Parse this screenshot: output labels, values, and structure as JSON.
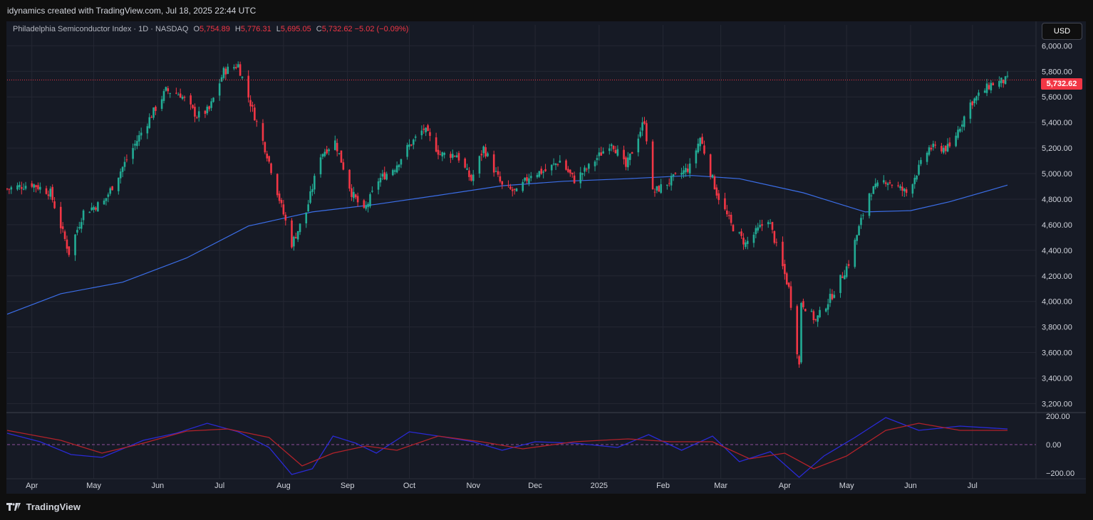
{
  "header": {
    "caption": "idynamics created with TradingView.com, Jul 18, 2025 22:44 UTC"
  },
  "legend": {
    "symbol": "Philadelphia Semiconductor Index · 1D · NASDAQ",
    "o_label": "O",
    "o_value": "5,754.89",
    "h_label": "H",
    "h_value": "5,776.31",
    "l_label": "L",
    "l_value": "5,695.05",
    "c_label": "C",
    "c_value": "5,732.62",
    "change": "−5.02 (−0.09%)"
  },
  "currency_button": "USD",
  "last_price_badge": "5,732.62",
  "footer": {
    "brand": "TradingView"
  },
  "colors": {
    "up": "#22ab94",
    "down": "#f23645",
    "ma": "#3b6ee8",
    "osc_fast": "#2a2ad6",
    "osc_slow": "#b2222a",
    "background": "#161a25",
    "grid": "#242733"
  },
  "chart_data": {
    "type": "candlestick",
    "x_axis_labels": [
      "Apr",
      "May",
      "Jun",
      "Jul",
      "Aug",
      "Sep",
      "Oct",
      "Nov",
      "Dec",
      "2025",
      "Feb",
      "Mar",
      "Apr",
      "May",
      "Jun",
      "Jul"
    ],
    "y_axis_ticks": [
      "6,000.00",
      "5,800.00",
      "5,600.00",
      "5,400.00",
      "5,200.00",
      "5,000.00",
      "4,800.00",
      "4,600.00",
      "4,400.00",
      "4,200.00",
      "4,000.00",
      "3,800.00",
      "3,600.00",
      "3,400.00",
      "3,200.00"
    ],
    "ylim": [
      3130,
      6080
    ],
    "last_price": 5732.62,
    "price_path": [
      [
        "2024-03-20",
        4880
      ],
      [
        "2024-04-01",
        4920
      ],
      [
        "2024-04-10",
        4850
      ],
      [
        "2024-04-19",
        4380
      ],
      [
        "2024-04-26",
        4700
      ],
      [
        "2024-05-06",
        4780
      ],
      [
        "2024-05-15",
        5050
      ],
      [
        "2024-05-24",
        5320
      ],
      [
        "2024-06-05",
        5650
      ],
      [
        "2024-06-12",
        5620
      ],
      [
        "2024-06-20",
        5450
      ],
      [
        "2024-06-26",
        5500
      ],
      [
        "2024-07-03",
        5800
      ],
      [
        "2024-07-10",
        5850
      ],
      [
        "2024-07-17",
        5500
      ],
      [
        "2024-07-24",
        5150
      ],
      [
        "2024-08-05",
        4450
      ],
      [
        "2024-08-12",
        4700
      ],
      [
        "2024-08-19",
        5150
      ],
      [
        "2024-08-26",
        5250
      ],
      [
        "2024-09-03",
        4850
      ],
      [
        "2024-09-09",
        4700
      ],
      [
        "2024-09-16",
        4950
      ],
      [
        "2024-09-24",
        5050
      ],
      [
        "2024-09-30",
        5200
      ],
      [
        "2024-10-08",
        5350
      ],
      [
        "2024-10-16",
        5150
      ],
      [
        "2024-10-24",
        5150
      ],
      [
        "2024-10-31",
        4950
      ],
      [
        "2024-11-06",
        5200
      ],
      [
        "2024-11-15",
        4900
      ],
      [
        "2024-11-22",
        4850
      ],
      [
        "2024-11-29",
        5000
      ],
      [
        "2024-12-06",
        5020
      ],
      [
        "2024-12-13",
        5100
      ],
      [
        "2024-12-20",
        4950
      ],
      [
        "2024-12-27",
        5050
      ],
      [
        "2025-01-07",
        5250
      ],
      [
        "2025-01-14",
        5050
      ],
      [
        "2025-01-23",
        5420
      ],
      [
        "2025-01-27",
        4850
      ],
      [
        "2025-02-05",
        4950
      ],
      [
        "2025-02-14",
        5050
      ],
      [
        "2025-02-19",
        5280
      ],
      [
        "2025-02-27",
        4850
      ],
      [
        "2025-03-06",
        4600
      ],
      [
        "2025-03-13",
        4450
      ],
      [
        "2025-03-24",
        4650
      ],
      [
        "2025-04-03",
        4100
      ],
      [
        "2025-04-08",
        3500
      ],
      [
        "2025-04-09",
        4000
      ],
      [
        "2025-04-16",
        3850
      ],
      [
        "2025-04-24",
        4050
      ],
      [
        "2025-05-02",
        4300
      ],
      [
        "2025-05-12",
        4850
      ],
      [
        "2025-05-20",
        4950
      ],
      [
        "2025-05-30",
        4850
      ],
      [
        "2025-06-10",
        5200
      ],
      [
        "2025-06-20",
        5200
      ],
      [
        "2025-06-30",
        5550
      ],
      [
        "2025-07-10",
        5700
      ],
      [
        "2025-07-18",
        5732.62
      ]
    ],
    "moving_average": [
      [
        "2024-03-20",
        3900
      ],
      [
        "2024-04-15",
        4060
      ],
      [
        "2024-05-15",
        4150
      ],
      [
        "2024-06-15",
        4340
      ],
      [
        "2024-07-15",
        4590
      ],
      [
        "2024-08-15",
        4700
      ],
      [
        "2024-09-15",
        4760
      ],
      [
        "2024-10-15",
        4830
      ],
      [
        "2024-11-15",
        4905
      ],
      [
        "2024-12-15",
        4940
      ],
      [
        "2025-01-15",
        4960
      ],
      [
        "2025-02-15",
        4985
      ],
      [
        "2025-03-10",
        4960
      ],
      [
        "2025-04-10",
        4850
      ],
      [
        "2025-05-10",
        4700
      ],
      [
        "2025-06-01",
        4710
      ],
      [
        "2025-06-20",
        4780
      ],
      [
        "2025-07-18",
        4910
      ]
    ],
    "oscillator": {
      "ticks": [
        "200.00",
        "0.00",
        "−200.00"
      ],
      "ylim": [
        -240,
        220
      ],
      "fast": [
        [
          "2024-03-20",
          80
        ],
        [
          "2024-04-05",
          20
        ],
        [
          "2024-04-20",
          -70
        ],
        [
          "2024-05-05",
          -90
        ],
        [
          "2024-05-25",
          30
        ],
        [
          "2024-06-10",
          80
        ],
        [
          "2024-06-25",
          150
        ],
        [
          "2024-07-10",
          90
        ],
        [
          "2024-07-25",
          -20
        ],
        [
          "2024-08-05",
          -210
        ],
        [
          "2024-08-15",
          -170
        ],
        [
          "2024-08-25",
          60
        ],
        [
          "2024-09-05",
          10
        ],
        [
          "2024-09-15",
          -60
        ],
        [
          "2024-10-01",
          90
        ],
        [
          "2024-10-15",
          60
        ],
        [
          "2024-11-01",
          20
        ],
        [
          "2024-11-15",
          -40
        ],
        [
          "2024-12-01",
          20
        ],
        [
          "2024-12-20",
          10
        ],
        [
          "2025-01-10",
          -20
        ],
        [
          "2025-01-25",
          70
        ],
        [
          "2025-02-10",
          -40
        ],
        [
          "2025-02-25",
          60
        ],
        [
          "2025-03-10",
          -120
        ],
        [
          "2025-03-25",
          -50
        ],
        [
          "2025-04-08",
          -230
        ],
        [
          "2025-04-20",
          -80
        ],
        [
          "2025-05-05",
          50
        ],
        [
          "2025-05-20",
          190
        ],
        [
          "2025-06-05",
          100
        ],
        [
          "2025-06-25",
          130
        ],
        [
          "2025-07-18",
          110
        ]
      ],
      "slow": [
        [
          "2024-03-20",
          100
        ],
        [
          "2024-04-15",
          30
        ],
        [
          "2024-05-05",
          -60
        ],
        [
          "2024-05-25",
          10
        ],
        [
          "2024-06-15",
          95
        ],
        [
          "2024-07-05",
          110
        ],
        [
          "2024-07-25",
          50
        ],
        [
          "2024-08-10",
          -150
        ],
        [
          "2024-08-25",
          -60
        ],
        [
          "2024-09-10",
          -10
        ],
        [
          "2024-09-25",
          -40
        ],
        [
          "2024-10-15",
          60
        ],
        [
          "2024-11-05",
          20
        ],
        [
          "2024-11-25",
          -30
        ],
        [
          "2024-12-20",
          20
        ],
        [
          "2025-01-15",
          40
        ],
        [
          "2025-02-05",
          20
        ],
        [
          "2025-02-25",
          20
        ],
        [
          "2025-03-15",
          -100
        ],
        [
          "2025-04-01",
          -60
        ],
        [
          "2025-04-15",
          -170
        ],
        [
          "2025-05-01",
          -80
        ],
        [
          "2025-05-20",
          100
        ],
        [
          "2025-06-05",
          150
        ],
        [
          "2025-06-25",
          100
        ],
        [
          "2025-07-18",
          100
        ]
      ]
    }
  }
}
